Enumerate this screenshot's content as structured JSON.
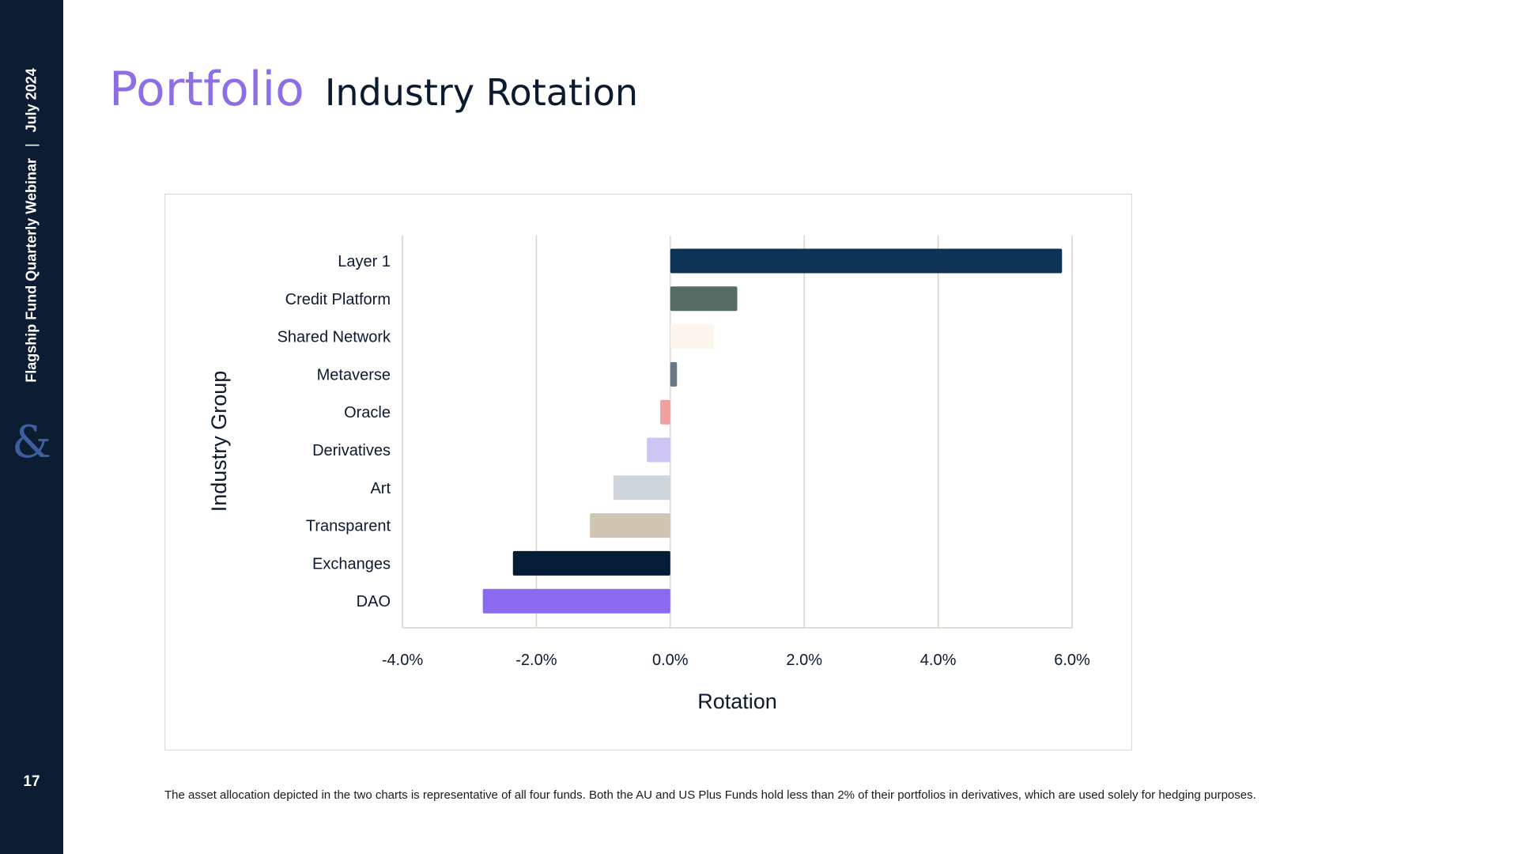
{
  "sidebar": {
    "event": "Flagship Fund Quarterly Webinar",
    "separator": "|",
    "date": "July 2024",
    "logo_icon": "ampersand-icon",
    "page_number": "17"
  },
  "header": {
    "section": "Portfolio",
    "title": "Industry Rotation"
  },
  "colors": {
    "sidebar": "#0b1c33",
    "accent": "#8e6ee6",
    "title": "#0b1a2e"
  },
  "chart_data": {
    "type": "bar",
    "orientation": "horizontal",
    "categories": [
      "Layer 1",
      "Credit Platform",
      "Shared Network",
      "Metaverse",
      "Oracle",
      "Derivatives",
      "Art",
      "Transparent",
      "Exchanges",
      "DAO"
    ],
    "values": [
      5.85,
      1.0,
      0.65,
      0.1,
      -0.15,
      -0.35,
      -0.85,
      -1.2,
      -2.35,
      -2.8
    ],
    "bar_colors": [
      "#0f3354",
      "#566b63",
      "#fbf6ec",
      "#6b7785",
      "#f0a0a3",
      "#cdc4f4",
      "#d0d5dc",
      "#cfc5b2",
      "#051c36",
      "#8b6af0"
    ],
    "xlim": [
      -4,
      6
    ],
    "xticks": [
      -4,
      -2,
      0,
      2,
      4,
      6
    ],
    "xtick_labels": [
      "-4.0%",
      "-2.0%",
      "0.0%",
      "2.0%",
      "4.0%",
      "6.0%"
    ],
    "xlabel": "Rotation",
    "ylabel": "Industry Group",
    "grid": "vertical"
  },
  "footnote": "The asset allocation depicted in the two charts is representative of all four funds. Both the AU and US Plus Funds hold less than 2% of their portfolios in derivatives, which are used solely for hedging purposes."
}
